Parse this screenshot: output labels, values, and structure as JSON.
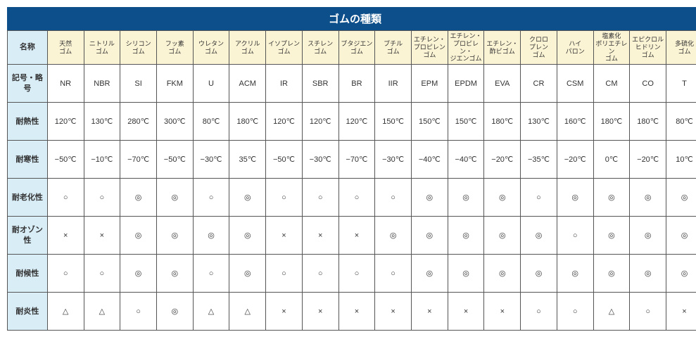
{
  "title": "ゴムの種類",
  "colors": {
    "title_bg": "#0d4f8b",
    "title_fg": "#ffffff",
    "rowhdr_bg": "#d9edf7",
    "colhdr_bg": "#faf3d4",
    "cell_bg": "#ffffff",
    "border": "#555555",
    "text": "#333333"
  },
  "row_labels": [
    "名称",
    "記号・略号",
    "耐熱性",
    "耐寒性",
    "耐老化性",
    "耐オゾン性",
    "耐候性",
    "耐炎性"
  ],
  "columns": [
    {
      "name": "天然\nゴム",
      "code": "NR",
      "heat": "120℃",
      "cold": "−50℃",
      "aging": "○",
      "ozone": "×",
      "weather": "○",
      "flame": "△"
    },
    {
      "name": "ニトリル\nゴム",
      "code": "NBR",
      "heat": "130℃",
      "cold": "−10℃",
      "aging": "○",
      "ozone": "×",
      "weather": "○",
      "flame": "△"
    },
    {
      "name": "シリコン\nゴム",
      "code": "SI",
      "heat": "280℃",
      "cold": "−70℃",
      "aging": "◎",
      "ozone": "◎",
      "weather": "◎",
      "flame": "○"
    },
    {
      "name": "フッ素\nゴム",
      "code": "FKM",
      "heat": "300℃",
      "cold": "−50℃",
      "aging": "◎",
      "ozone": "◎",
      "weather": "◎",
      "flame": "◎"
    },
    {
      "name": "ウレタン\nゴム",
      "code": "U",
      "heat": "80℃",
      "cold": "−30℃",
      "aging": "○",
      "ozone": "◎",
      "weather": "○",
      "flame": "△"
    },
    {
      "name": "アクリル\nゴム",
      "code": "ACM",
      "heat": "180℃",
      "cold": "35℃",
      "aging": "◎",
      "ozone": "◎",
      "weather": "◎",
      "flame": "△"
    },
    {
      "name": "イソプレン\nゴム",
      "code": "IR",
      "heat": "120℃",
      "cold": "−50℃",
      "aging": "○",
      "ozone": "×",
      "weather": "○",
      "flame": "×"
    },
    {
      "name": "スチレン\nゴム",
      "code": "SBR",
      "heat": "120℃",
      "cold": "−30℃",
      "aging": "○",
      "ozone": "×",
      "weather": "○",
      "flame": "×"
    },
    {
      "name": "ブタジエン\nゴム",
      "code": "BR",
      "heat": "120℃",
      "cold": "−70℃",
      "aging": "○",
      "ozone": "×",
      "weather": "○",
      "flame": "×"
    },
    {
      "name": "ブチル\nゴム",
      "code": "IIR",
      "heat": "150℃",
      "cold": "−30℃",
      "aging": "○",
      "ozone": "◎",
      "weather": "○",
      "flame": "×"
    },
    {
      "name": "エチレン・\nプロピレン\nゴム",
      "code": "EPM",
      "heat": "150℃",
      "cold": "−40℃",
      "aging": "◎",
      "ozone": "◎",
      "weather": "◎",
      "flame": "×"
    },
    {
      "name": "エチレン・\nプロピレン・\nジエンゴム",
      "code": "EPDM",
      "heat": "150℃",
      "cold": "−40℃",
      "aging": "◎",
      "ozone": "◎",
      "weather": "◎",
      "flame": "×"
    },
    {
      "name": "エチレン・\n酢ビゴム",
      "code": "EVA",
      "heat": "180℃",
      "cold": "−20℃",
      "aging": "◎",
      "ozone": "◎",
      "weather": "◎",
      "flame": "×"
    },
    {
      "name": "クロロ\nプレン\nゴム",
      "code": "CR",
      "heat": "130℃",
      "cold": "−35℃",
      "aging": "○",
      "ozone": "◎",
      "weather": "◎",
      "flame": "○"
    },
    {
      "name": "ハイ\nパロン",
      "code": "CSM",
      "heat": "160℃",
      "cold": "−20℃",
      "aging": "◎",
      "ozone": "○",
      "weather": "◎",
      "flame": "○"
    },
    {
      "name": "塩素化\nポリエチレン\nゴム",
      "code": "CM",
      "heat": "180℃",
      "cold": "0℃",
      "aging": "◎",
      "ozone": "◎",
      "weather": "◎",
      "flame": "△"
    },
    {
      "name": "エピクロル\nヒドリン\nゴム",
      "code": "CO",
      "heat": "180℃",
      "cold": "−20℃",
      "aging": "◎",
      "ozone": "◎",
      "weather": "◎",
      "flame": "○"
    },
    {
      "name": "多硫化\nゴム",
      "code": "T",
      "heat": "80℃",
      "cold": "10℃",
      "aging": "◎",
      "ozone": "◎",
      "weather": "◎",
      "flame": "×"
    }
  ],
  "row_keys": [
    "name",
    "code",
    "heat",
    "cold",
    "aging",
    "ozone",
    "weather",
    "flame"
  ]
}
